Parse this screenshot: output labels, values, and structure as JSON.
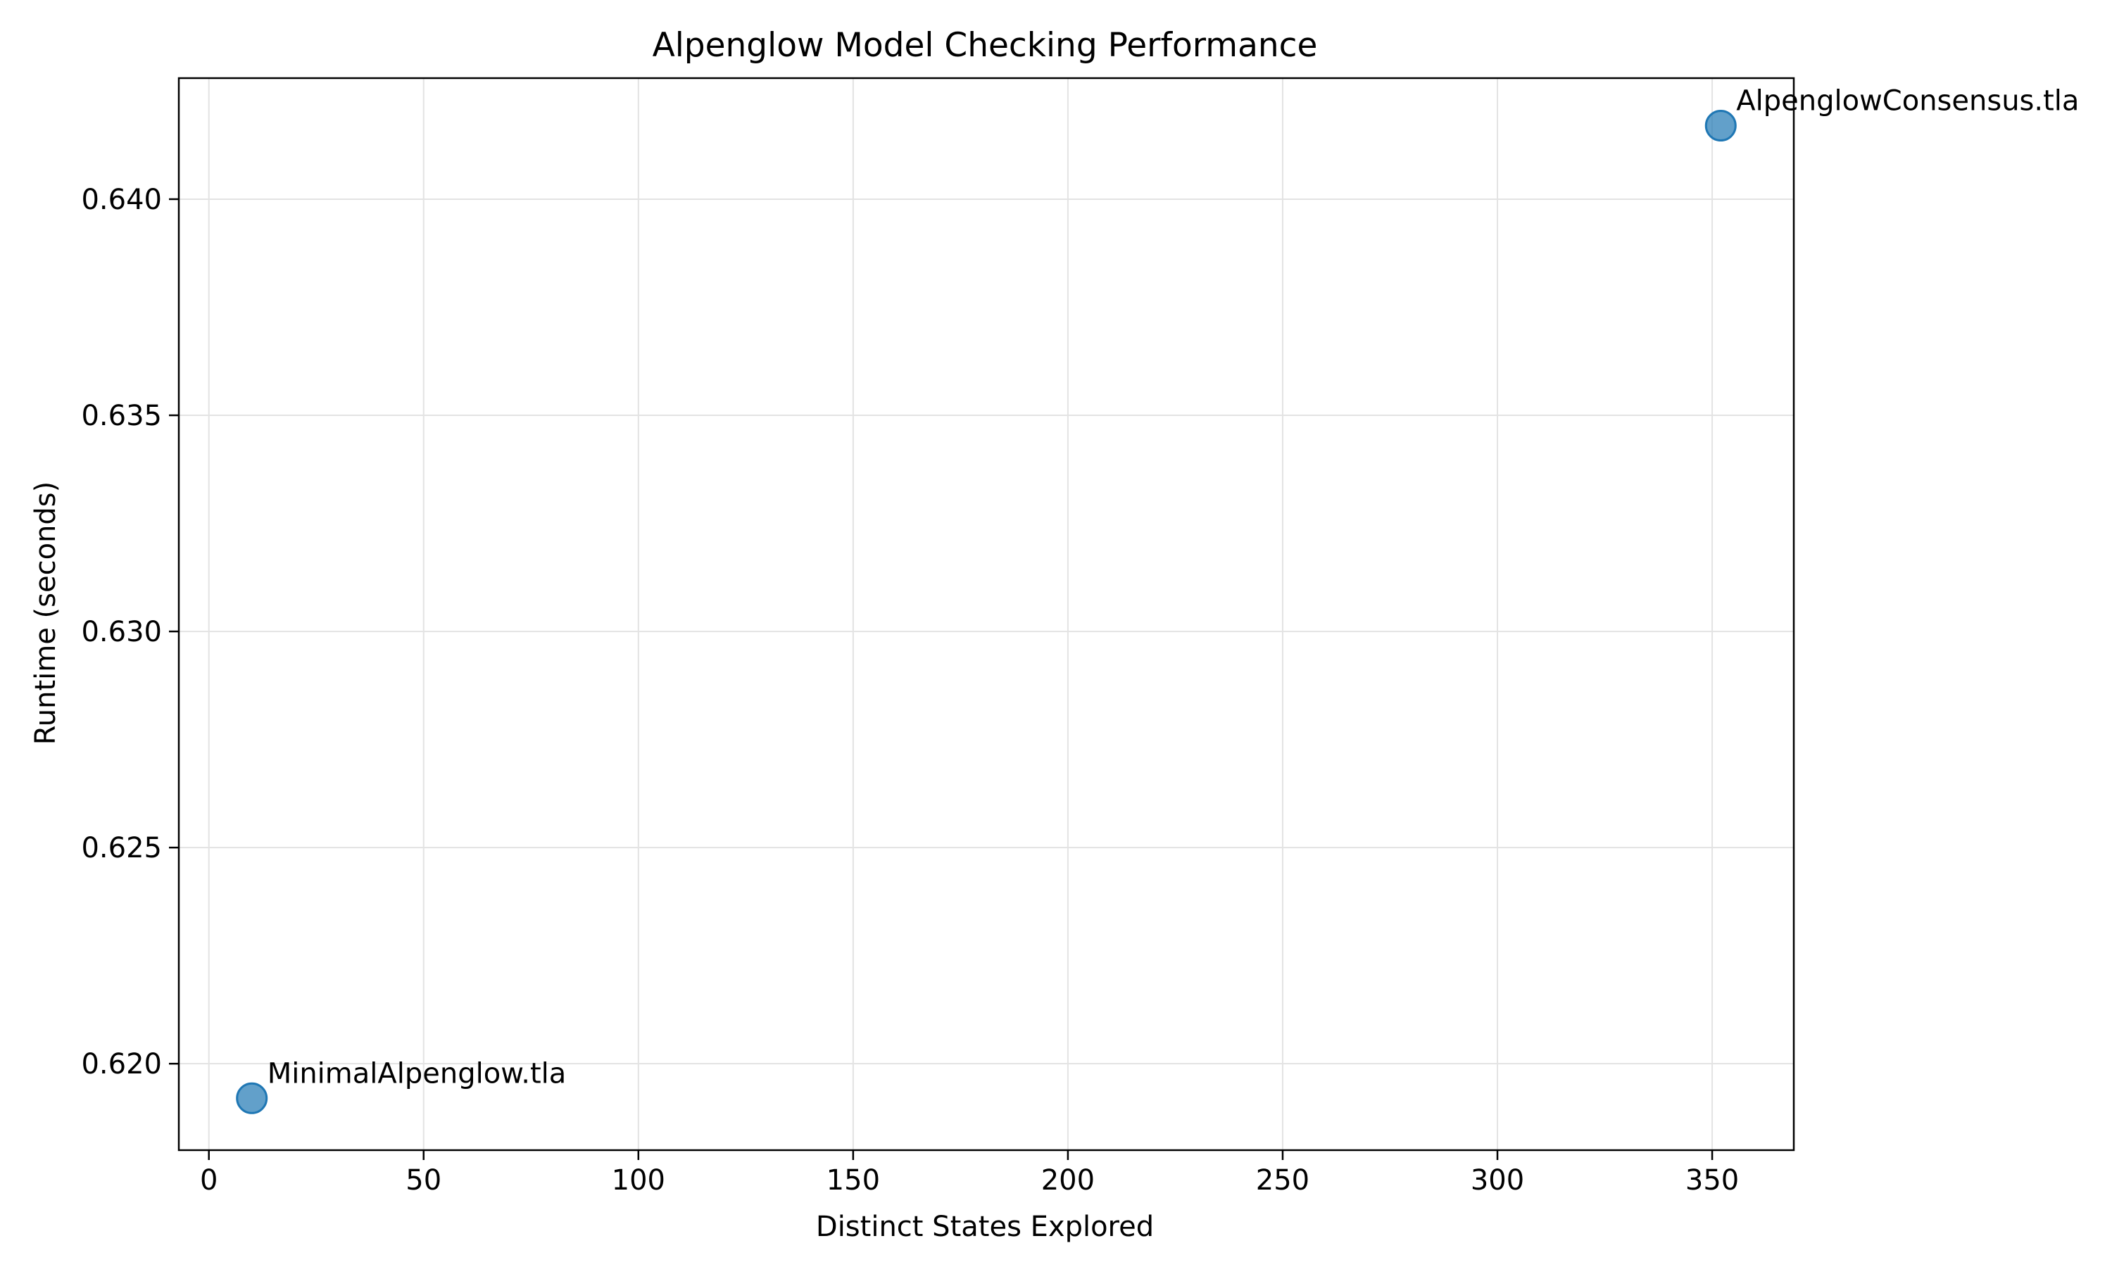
{
  "chart_data": {
    "type": "scatter",
    "title": "Alpenglow Model Checking Performance",
    "xlabel": "Distinct States Explored",
    "ylabel": "Runtime (seconds)",
    "xlim": [
      -7,
      369
    ],
    "ylim": [
      0.618,
      0.6428
    ],
    "xticks": [
      0,
      50,
      100,
      150,
      200,
      250,
      300,
      350
    ],
    "xtick_labels": [
      "0",
      "50",
      "100",
      "150",
      "200",
      "250",
      "300",
      "350"
    ],
    "yticks": [
      0.62,
      0.625,
      0.63,
      0.635,
      0.64
    ],
    "ytick_labels": [
      "0.620",
      "0.625",
      "0.630",
      "0.635",
      "0.640"
    ],
    "grid": true,
    "legend": false,
    "marker_color": "#1f77b4",
    "points": [
      {
        "x": 10,
        "y": 0.6192,
        "label": "MinimalAlpenglow.tla"
      },
      {
        "x": 352,
        "y": 0.6417,
        "label": "AlpenglowConsensus.tla"
      }
    ]
  }
}
